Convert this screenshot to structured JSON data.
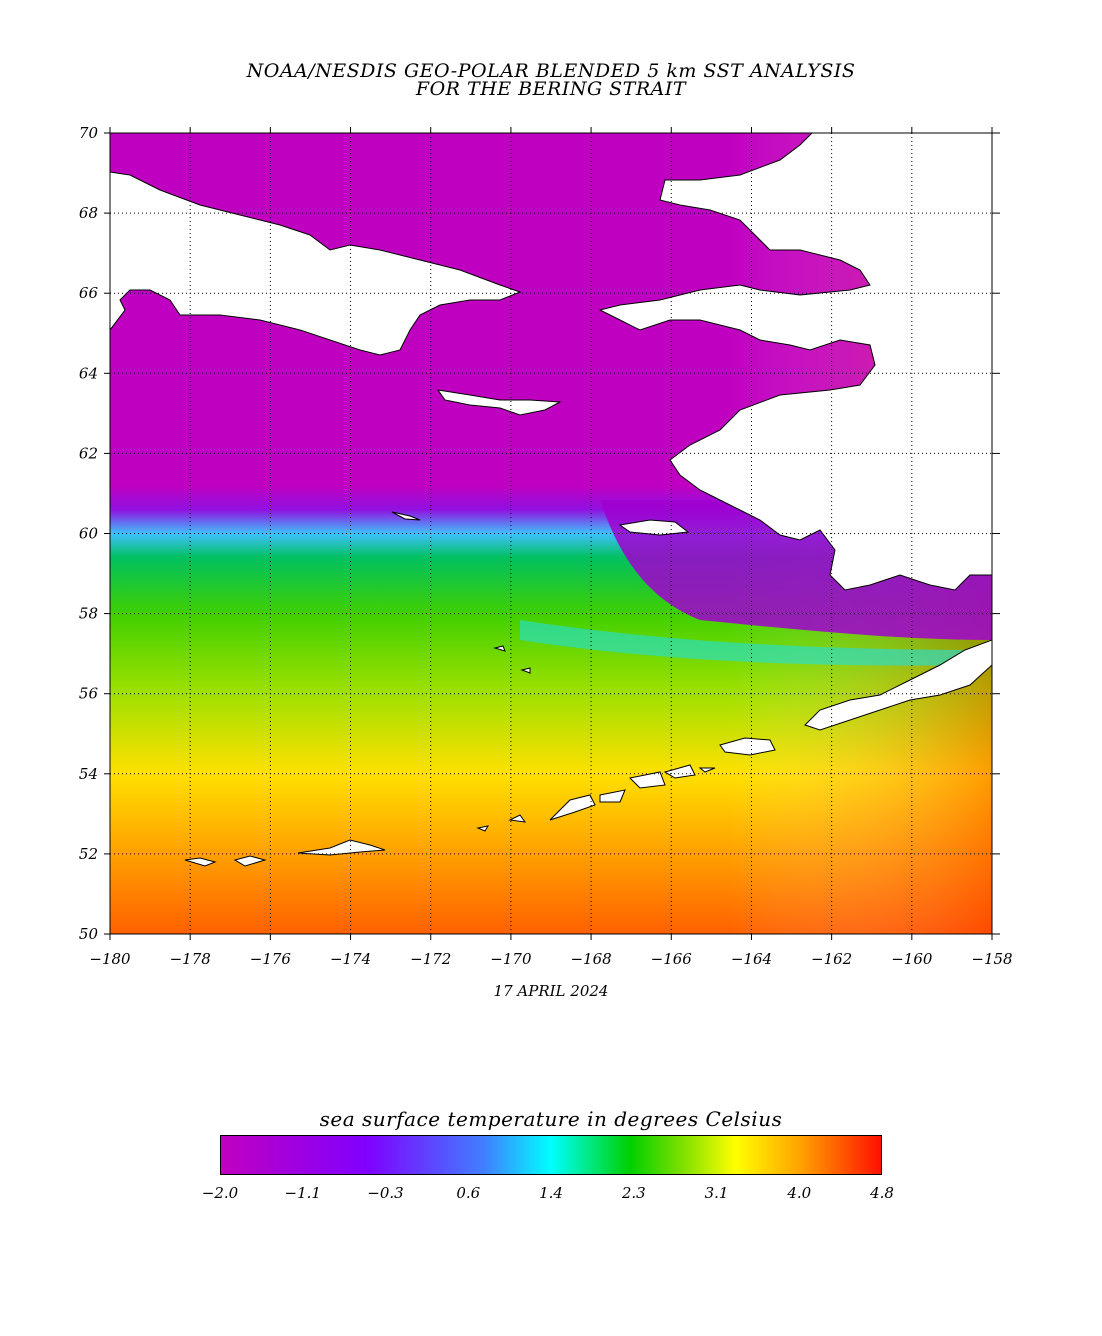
{
  "title": {
    "line1": "NOAA/NESDIS GEO-POLAR BLENDED 5 km SST ANALYSIS",
    "line2": "FOR THE BERING STRAIT"
  },
  "date": "17 APRIL 2024",
  "map": {
    "lon_range": [
      -180,
      -158
    ],
    "lat_range": [
      50,
      70
    ],
    "lon_ticks": [
      "-180",
      "-178",
      "-176",
      "-174",
      "-172",
      "-170",
      "-168",
      "-166",
      "-164",
      "-162",
      "-160",
      "-158"
    ],
    "lat_ticks": [
      "70",
      "68",
      "66",
      "64",
      "62",
      "60",
      "58",
      "56",
      "54",
      "52",
      "50"
    ],
    "gridlines": "dotted"
  },
  "legend": {
    "title": "sea surface temperature in degrees Celsius",
    "ticks": [
      "-2.0",
      "-1.1",
      "-0.3",
      "0.6",
      "1.4",
      "2.3",
      "3.1",
      "4.0",
      "4.8"
    ],
    "colors": [
      "#c000c0",
      "#8000ff",
      "#4080ff",
      "#00ffff",
      "#00d000",
      "#80e000",
      "#ffff00",
      "#ffa000",
      "#ff1000"
    ]
  }
}
